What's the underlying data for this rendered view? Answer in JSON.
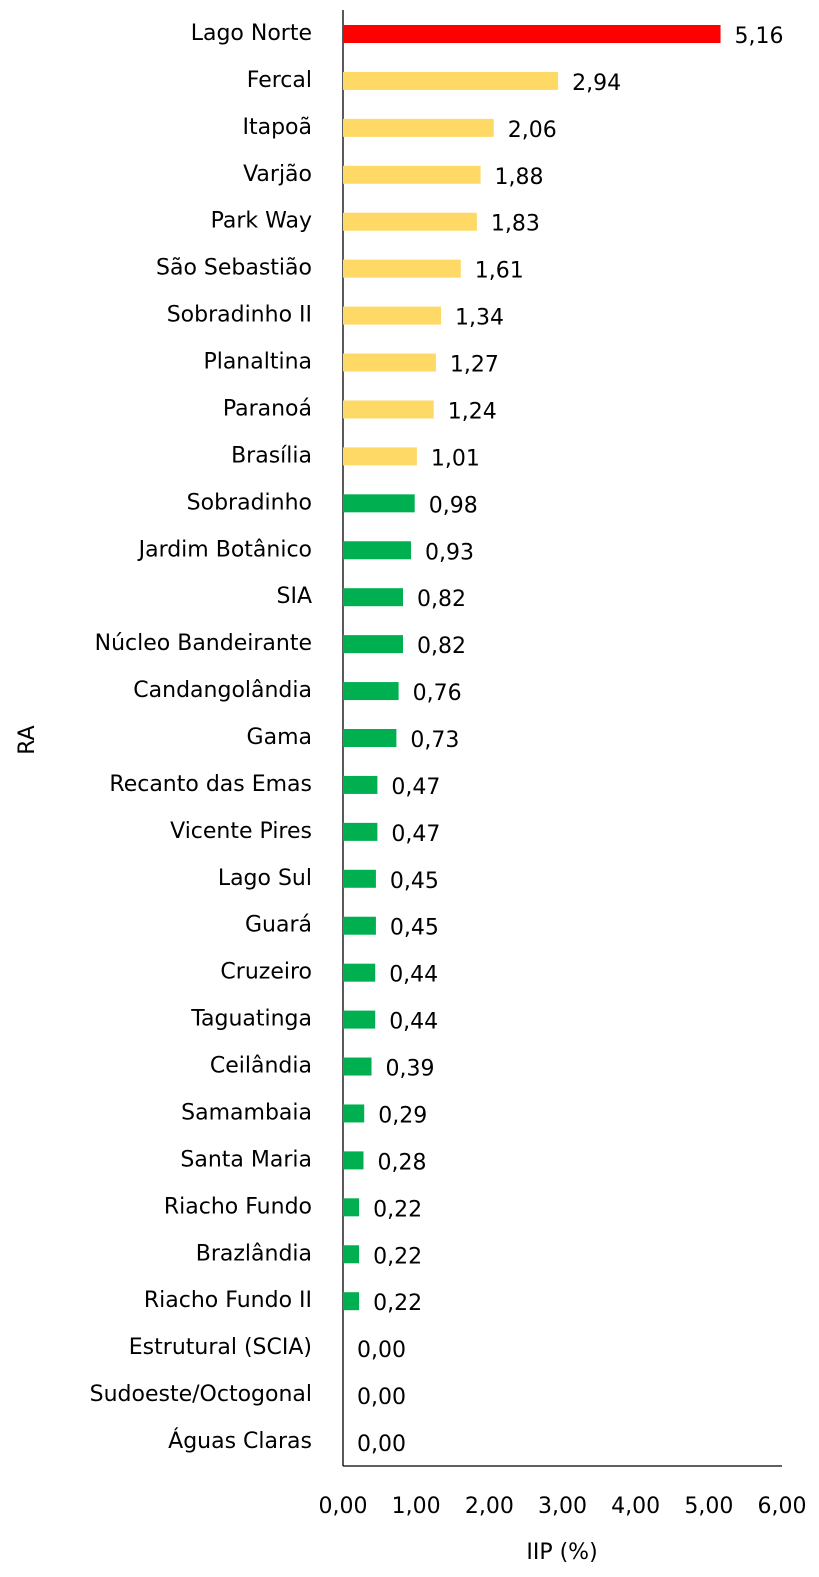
{
  "chart_data": {
    "type": "bar",
    "orientation": "horizontal",
    "x_label": "IIP (%)",
    "y_label": "RA",
    "categories": [
      "Lago Norte",
      "Fercal",
      "Itapoã",
      "Varjão",
      "Park Way",
      "São Sebastião",
      "Sobradinho II",
      "Planaltina",
      "Paranoá",
      "Brasília",
      "Sobradinho",
      "Jardim Botânico",
      "SIA",
      "Núcleo Bandeirante",
      "Candangolândia",
      "Gama",
      "Recanto das Emas",
      "Vicente Pires",
      "Lago Sul",
      "Guará",
      "Cruzeiro",
      "Taguatinga",
      "Ceilândia",
      "Samambaia",
      "Santa Maria",
      "Riacho Fundo",
      "Brazlândia",
      "Riacho Fundo II",
      "Estrutural (SCIA)",
      "Sudoeste/Octogonal",
      "Águas Claras"
    ],
    "values": [
      5.16,
      2.94,
      2.06,
      1.88,
      1.83,
      1.61,
      1.34,
      1.27,
      1.24,
      1.01,
      0.98,
      0.93,
      0.82,
      0.82,
      0.76,
      0.73,
      0.47,
      0.47,
      0.45,
      0.45,
      0.44,
      0.44,
      0.39,
      0.29,
      0.28,
      0.22,
      0.22,
      0.22,
      0,
      0,
      0
    ],
    "value_labels": [
      "5,16",
      "2,94",
      "2,06",
      "1,88",
      "1,83",
      "1,61",
      "1,34",
      "1,27",
      "1,24",
      "1,01",
      "0,98",
      "0,93",
      "0,82",
      "0,82",
      "0,76",
      "0,73",
      "0,47",
      "0,47",
      "0,45",
      "0,45",
      "0,44",
      "0,44",
      "0,39",
      "0,29",
      "0,28",
      "0,22",
      "0,22",
      "0,22",
      "0,00",
      "0,00",
      "0,00"
    ],
    "colors": [
      "#ff0000",
      "#ffd966",
      "#ffd966",
      "#ffd966",
      "#ffd966",
      "#ffd966",
      "#ffd966",
      "#ffd966",
      "#ffd966",
      "#ffd966",
      "#00b050",
      "#00b050",
      "#00b050",
      "#00b050",
      "#00b050",
      "#00b050",
      "#00b050",
      "#00b050",
      "#00b050",
      "#00b050",
      "#00b050",
      "#00b050",
      "#00b050",
      "#00b050",
      "#00b050",
      "#00b050",
      "#00b050",
      "#00b050",
      "#00b050",
      "#00b050",
      "#00b050"
    ],
    "xlim": [
      0,
      6
    ],
    "xticks": [
      {
        "value": 0,
        "label": "0,00"
      },
      {
        "value": 1,
        "label": "1,00"
      },
      {
        "value": 2,
        "label": "2,00"
      },
      {
        "value": 3,
        "label": "3,00"
      },
      {
        "value": 4,
        "label": "4,00"
      },
      {
        "value": 5,
        "label": "5,00"
      },
      {
        "value": 6,
        "label": "6,00"
      }
    ],
    "grid": false
  }
}
